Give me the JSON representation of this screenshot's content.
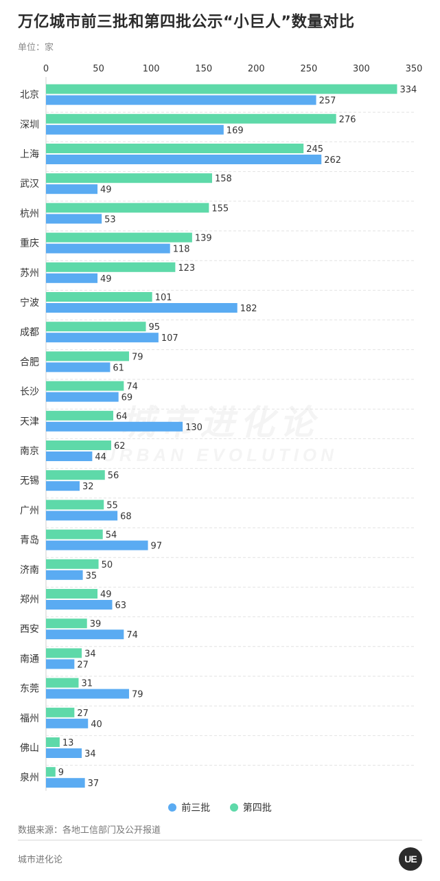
{
  "header": {
    "title": "万亿城市前三批和第四批公示“小巨人”数量对比",
    "unit": "单位：家"
  },
  "watermark": {
    "cn": "城市进化论",
    "en": "URBAN EVOLUTION"
  },
  "colors": {
    "series_first_three": "#5aabf2",
    "series_fourth": "#5ed9a9",
    "grid": "#e2e2e2",
    "text": "#333333"
  },
  "legend": [
    {
      "label": "前三批",
      "color": "#5aabf2"
    },
    {
      "label": "第四批",
      "color": "#5ed9a9"
    }
  ],
  "chart_data": {
    "type": "bar",
    "orientation": "horizontal",
    "xlim": [
      0,
      350
    ],
    "ticks": [
      0,
      50,
      100,
      150,
      200,
      250,
      300,
      350
    ],
    "grid": true,
    "legend_position": "bottom",
    "categories": [
      "北京",
      "深圳",
      "上海",
      "武汉",
      "杭州",
      "重庆",
      "苏州",
      "宁波",
      "成都",
      "合肥",
      "长沙",
      "天津",
      "南京",
      "无锡",
      "广州",
      "青岛",
      "济南",
      "郑州",
      "西安",
      "南通",
      "东莞",
      "福州",
      "佛山",
      "泉州"
    ],
    "series": [
      {
        "name": "第四批",
        "values": [
          334,
          276,
          245,
          158,
          155,
          139,
          123,
          101,
          95,
          79,
          74,
          64,
          62,
          56,
          55,
          54,
          50,
          49,
          39,
          34,
          31,
          27,
          13,
          9
        ]
      },
      {
        "name": "前三批",
        "values": [
          257,
          169,
          262,
          49,
          53,
          118,
          49,
          182,
          107,
          61,
          69,
          130,
          44,
          32,
          68,
          97,
          35,
          63,
          74,
          27,
          79,
          40,
          34,
          37
        ]
      }
    ]
  },
  "footer": {
    "source": "数据来源：各地工信部门及公开报道",
    "brand": "城市进化论",
    "logo": "UE"
  }
}
